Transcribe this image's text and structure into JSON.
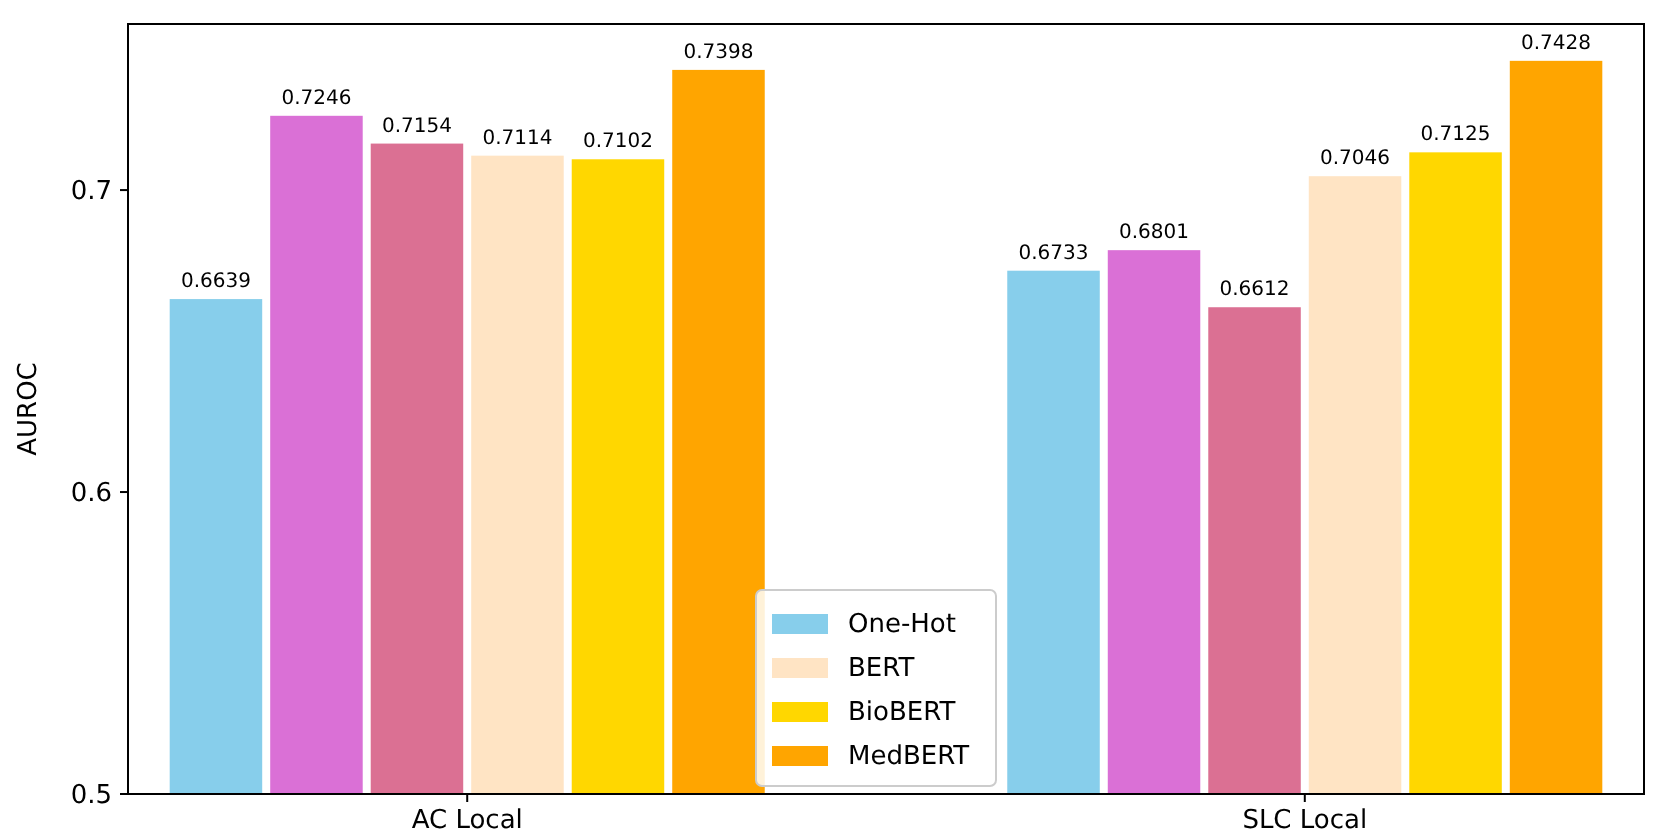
{
  "chart_data": {
    "type": "bar",
    "ylabel": "AUROC",
    "categories": [
      "AC Local",
      "SLC Local"
    ],
    "series": [
      {
        "name": "One-Hot",
        "color": "#87ceeb",
        "values": [
          0.6639,
          0.6733
        ]
      },
      {
        "color": "#da70d6",
        "values": [
          0.7246,
          0.6801
        ]
      },
      {
        "color": "#db7093",
        "values": [
          0.7154,
          0.6612
        ]
      },
      {
        "name": "BERT",
        "color": "#ffe4c4",
        "values": [
          0.7114,
          0.7046
        ]
      },
      {
        "name": "BioBERT",
        "color": "#ffd700",
        "values": [
          0.7102,
          0.7125
        ]
      },
      {
        "name": "MedBERT",
        "color": "#ffa500",
        "values": [
          0.7398,
          0.7428
        ]
      }
    ],
    "ylim": [
      0.5,
      0.755
    ],
    "yticks": [
      0.5,
      0.6,
      0.7
    ],
    "data_labels": true,
    "legend": "bottom",
    "grid": false
  }
}
